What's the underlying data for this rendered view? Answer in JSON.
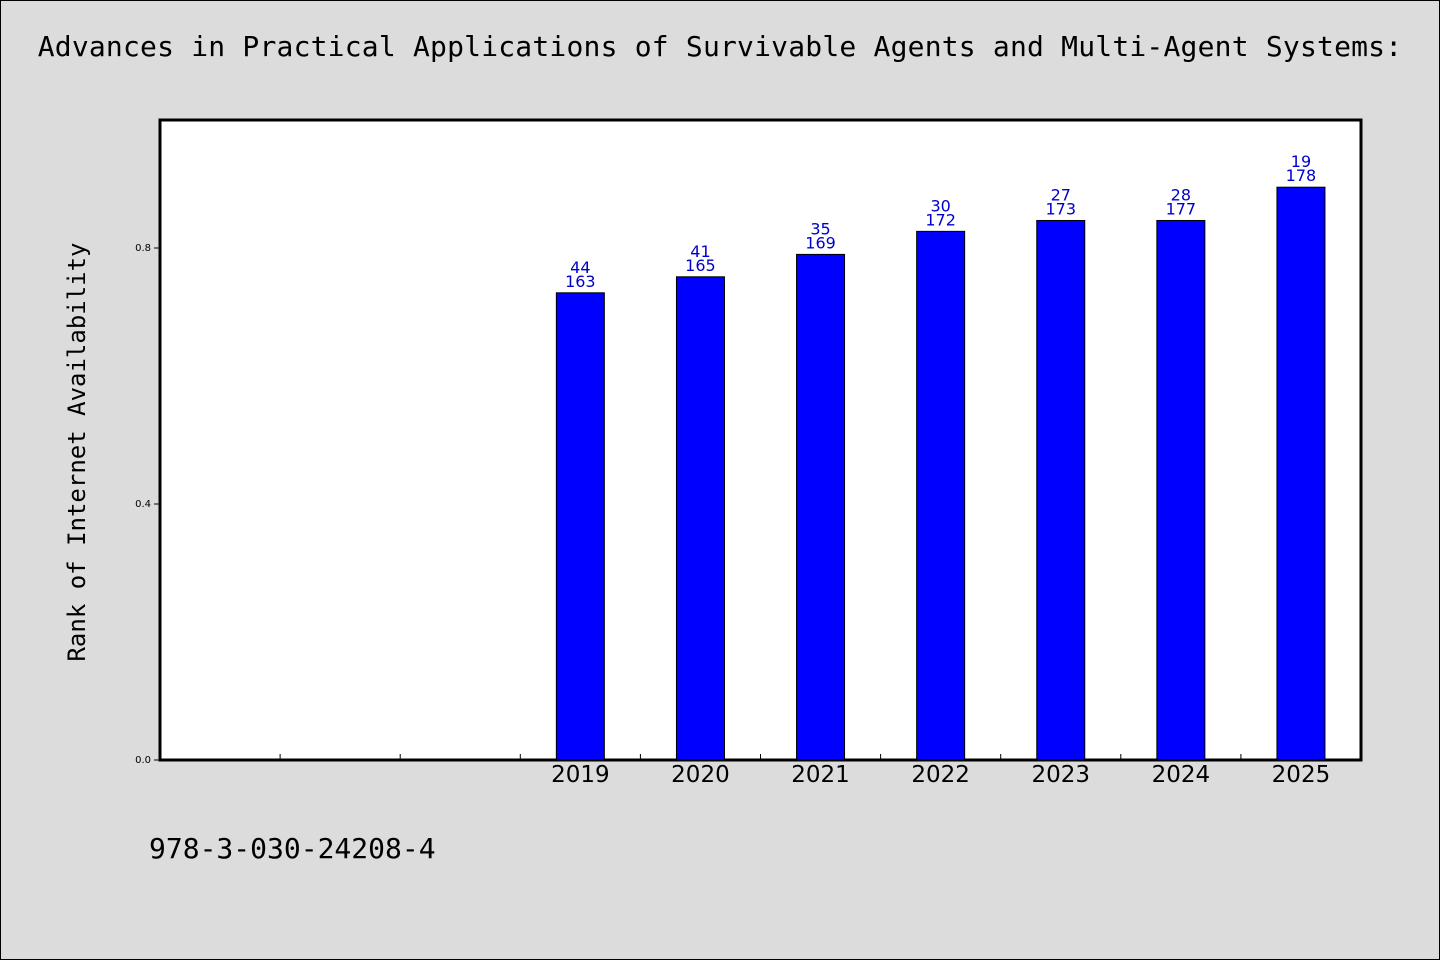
{
  "title": "Advances in Practical Applications of Survivable Agents and Multi-Agent Systems:",
  "footer_text": "978-3-030-24208-4",
  "colors": {
    "background": "#dcdcdc",
    "plot_background": "#ffffff",
    "bar": "#0000ff",
    "bar_label": "#0000cc"
  },
  "chart_data": {
    "type": "bar",
    "title": "Advances in Practical Applications of Survivable Agents and Multi-Agent Systems:",
    "ylabel": "Rank of Internet Availability",
    "xlabel": "",
    "ylim": [
      0.0,
      1.0
    ],
    "yticks": [
      0.0,
      0.4,
      0.8
    ],
    "ytick_labels": [
      "0.0",
      "0.4",
      "0.8"
    ],
    "grid": false,
    "categories": [
      "",
      "",
      "",
      "2019",
      "2020",
      "2021",
      "2022",
      "2023",
      "2024",
      "2025"
    ],
    "values": [
      null,
      null,
      null,
      0.73,
      0.755,
      0.79,
      0.826,
      0.843,
      0.843,
      0.895
    ],
    "labels_top": [
      "",
      "",
      "",
      "44",
      "41",
      "35",
      "30",
      "27",
      "28",
      "19"
    ],
    "labels_bottom": [
      "",
      "",
      "",
      "163",
      "165",
      "169",
      "172",
      "173",
      "177",
      "178"
    ]
  }
}
